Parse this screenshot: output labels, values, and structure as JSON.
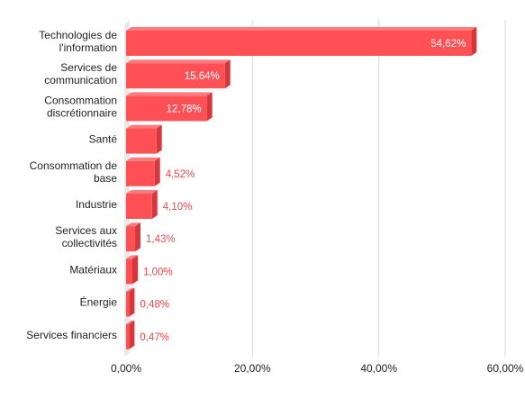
{
  "chart_data": {
    "type": "bar",
    "orientation": "horizontal",
    "style": "3d",
    "categories": [
      [
        "Technologies de",
        "l'information"
      ],
      [
        "Services de",
        "communication"
      ],
      [
        "Consommation",
        "discrétionnaire"
      ],
      [
        "Santé"
      ],
      [
        "Consommation de",
        "base"
      ],
      [
        "Industrie"
      ],
      [
        "Services aux",
        "collectivités"
      ],
      [
        "Matériaux"
      ],
      [
        "Énergie"
      ],
      [
        "Services financiers"
      ]
    ],
    "values": [
      54.62,
      15.64,
      12.78,
      4.8,
      4.52,
      4.1,
      1.43,
      1.0,
      0.48,
      0.47
    ],
    "data_labels": [
      "54,62%",
      "15,64%",
      "12,78%",
      "",
      "4,52%",
      "4,10%",
      "1,43%",
      "1,00%",
      "0,48%",
      "0,47%"
    ],
    "x_ticks": [
      "0,00%",
      "20,00%",
      "40,00%",
      "60,00%"
    ],
    "xlim": [
      0,
      60
    ],
    "x_tick_values": [
      0,
      20,
      40,
      60
    ],
    "grid": "vertical",
    "colors": {
      "bar_front": "#ff5055",
      "bar_side": "#cf3a3e",
      "bar_top": "#ff7a7e",
      "gridline": "#d9d9d9",
      "outside_label": "#e8484d",
      "inside_label": "#ffffff"
    }
  }
}
